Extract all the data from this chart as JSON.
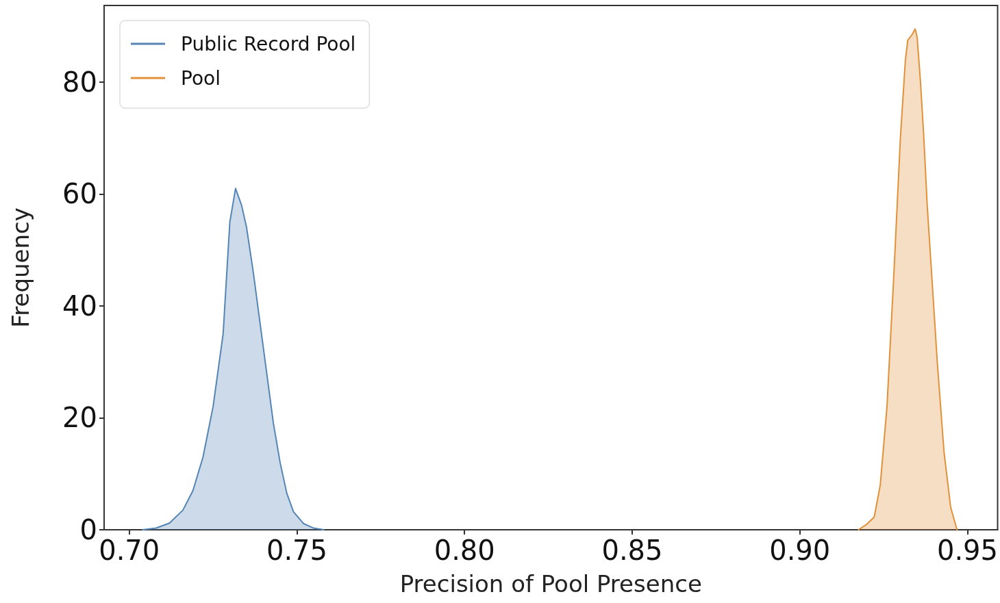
{
  "chart_data": {
    "type": "area",
    "xlabel": "Precision of Pool Presence",
    "ylabel": "Frequency",
    "xlim": [
      0.6925,
      0.959
    ],
    "ylim": [
      0,
      93.7
    ],
    "xticks": [
      {
        "value": 0.7,
        "label": "0.70"
      },
      {
        "value": 0.75,
        "label": "0.75"
      },
      {
        "value": 0.8,
        "label": "0.80"
      },
      {
        "value": 0.85,
        "label": "0.85"
      },
      {
        "value": 0.9,
        "label": "0.90"
      },
      {
        "value": 0.95,
        "label": "0.95"
      }
    ],
    "yticks": [
      0,
      20,
      40,
      60,
      80
    ],
    "grid": false,
    "legend": "top left",
    "marker": "none",
    "line_style": "solid",
    "series": [
      {
        "name": "Public Record Pool",
        "color": "#5585b5",
        "x": [
          0.704,
          0.708,
          0.712,
          0.716,
          0.719,
          0.722,
          0.725,
          0.728,
          0.73,
          0.7317,
          0.7335,
          0.735,
          0.737,
          0.739,
          0.741,
          0.743,
          0.745,
          0.747,
          0.749,
          0.752,
          0.755,
          0.758
        ],
        "values": [
          0,
          0.3,
          1.2,
          3.5,
          7,
          13,
          22,
          35,
          55,
          61,
          58,
          54,
          46,
          37,
          28,
          19,
          12,
          6.5,
          3.2,
          1.1,
          0.3,
          0
        ]
      },
      {
        "name": "Pool",
        "color": "#e0913a",
        "x": [
          0.9175,
          0.92,
          0.9222,
          0.924,
          0.926,
          0.928,
          0.93,
          0.9315,
          0.9322,
          0.9335,
          0.9344,
          0.935,
          0.936,
          0.937,
          0.938,
          0.9394,
          0.941,
          0.943,
          0.945,
          0.9469
        ],
        "values": [
          0,
          1,
          2.3,
          8,
          22,
          45,
          70,
          84,
          87.5,
          88.5,
          89.5,
          88,
          80,
          70,
          58,
          45,
          30,
          14,
          4,
          0
        ]
      }
    ]
  }
}
